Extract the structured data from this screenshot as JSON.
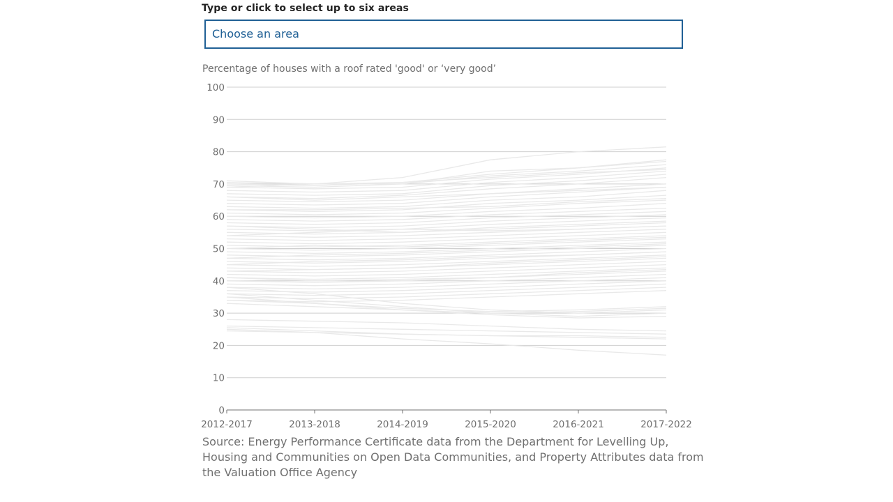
{
  "selector": {
    "label": "Type or click to select up to six areas",
    "placeholder": "Choose an area"
  },
  "chart_subtitle": "Percentage of houses with a roof rated 'good' or ‘very good’",
  "source": "Source: Energy Performance Certificate data from the Department for Levelling Up, Housing and Communities on Open Data Communities, and Property Attributes data from the Valuation Office Agency",
  "colors": {
    "line": "#e9e9e9",
    "grid": "#cfcfcf",
    "axis": "#707070",
    "accent": "#206095"
  },
  "chart_data": {
    "type": "line",
    "title": "Percentage of houses with a roof rated 'good' or ‘very good’",
    "xlabel": "",
    "ylabel": "",
    "categories": [
      "2012-2017",
      "2013-2018",
      "2014-2019",
      "2015-2020",
      "2016-2021",
      "2017-2022"
    ],
    "ylim": [
      0,
      100
    ],
    "yticks": [
      0,
      10,
      20,
      30,
      40,
      50,
      60,
      70,
      80,
      90,
      100
    ],
    "grid": true,
    "legend": "none",
    "series": [
      {
        "values": [
          71,
          70,
          72,
          77.5,
          80,
          81.5
        ]
      },
      {
        "values": [
          70.5,
          70,
          70,
          74,
          75,
          77.5
        ]
      },
      {
        "values": [
          70,
          69.5,
          70.5,
          73,
          75,
          77
        ]
      },
      {
        "values": [
          69.5,
          69,
          70,
          72.5,
          74,
          76
        ]
      },
      {
        "values": [
          69,
          68.5,
          69,
          71.5,
          73,
          75
        ]
      },
      {
        "values": [
          68,
          67.5,
          68,
          70.5,
          72,
          74
        ]
      },
      {
        "values": [
          67,
          66.5,
          67,
          69.5,
          71,
          73
        ]
      },
      {
        "values": [
          66,
          65.5,
          66.5,
          68.5,
          70,
          72
        ]
      },
      {
        "values": [
          65,
          64.5,
          65,
          67,
          68.5,
          70
        ]
      },
      {
        "values": [
          64,
          63.5,
          64,
          66,
          67.5,
          69
        ]
      },
      {
        "values": [
          63,
          62.5,
          63,
          65,
          66,
          68
        ]
      },
      {
        "values": [
          62,
          61.5,
          62,
          64,
          65,
          66.5
        ]
      },
      {
        "values": [
          61,
          60.5,
          61,
          62.5,
          64,
          65
        ]
      },
      {
        "values": [
          60,
          59.5,
          60,
          61.5,
          62.5,
          64
        ]
      },
      {
        "values": [
          59,
          58.5,
          59,
          60.5,
          61.5,
          62.5
        ]
      },
      {
        "values": [
          58,
          57.5,
          58,
          59.5,
          60.5,
          61.5
        ]
      },
      {
        "values": [
          57,
          56.5,
          57,
          58.5,
          59.5,
          60.5
        ]
      },
      {
        "values": [
          56,
          55.5,
          56,
          57.5,
          58.5,
          59.5
        ]
      },
      {
        "values": [
          55,
          54.5,
          55,
          56.5,
          57.5,
          58.5
        ]
      },
      {
        "values": [
          54,
          53.5,
          54,
          55,
          56,
          57
        ]
      },
      {
        "values": [
          53,
          52.5,
          53,
          54,
          55,
          56
        ]
      },
      {
        "values": [
          52,
          51.5,
          52,
          53,
          54,
          55
        ]
      },
      {
        "values": [
          51,
          50.5,
          51,
          52,
          53,
          54
        ]
      },
      {
        "values": [
          50,
          49.5,
          50,
          51,
          52,
          53
        ]
      },
      {
        "values": [
          49,
          48.5,
          49,
          50,
          51,
          52
        ]
      },
      {
        "values": [
          48,
          47.5,
          48,
          49,
          50,
          51
        ]
      },
      {
        "values": [
          47,
          46.5,
          47,
          48,
          49,
          50
        ]
      },
      {
        "values": [
          46,
          45.5,
          46,
          47,
          48,
          49
        ]
      },
      {
        "values": [
          45,
          44.5,
          45,
          46,
          47,
          48
        ]
      },
      {
        "values": [
          44,
          43.5,
          44,
          45,
          46,
          47
        ]
      },
      {
        "values": [
          43,
          42.5,
          43,
          44,
          45,
          46
        ]
      },
      {
        "values": [
          42,
          41.5,
          42,
          43,
          44,
          45
        ]
      },
      {
        "values": [
          41,
          40.5,
          41,
          42,
          43,
          44
        ]
      },
      {
        "values": [
          40,
          39.5,
          40,
          41,
          42,
          43
        ]
      },
      {
        "values": [
          39,
          38.5,
          39,
          40,
          41,
          42
        ]
      },
      {
        "values": [
          38,
          37.5,
          38,
          39,
          40,
          41
        ]
      },
      {
        "values": [
          37,
          36.5,
          37,
          38,
          39,
          40
        ]
      },
      {
        "values": [
          36,
          35.5,
          36,
          37,
          38,
          39
        ]
      },
      {
        "values": [
          35,
          34.5,
          35,
          36,
          37,
          38
        ]
      },
      {
        "values": [
          34,
          33.5,
          34,
          35,
          36,
          37
        ]
      },
      {
        "values": [
          38,
          36,
          33,
          31,
          30,
          31
        ]
      },
      {
        "values": [
          36,
          34,
          32,
          30,
          29,
          30
        ]
      },
      {
        "values": [
          35,
          33,
          31,
          29.5,
          28.5,
          29
        ]
      },
      {
        "values": [
          34,
          33,
          31.5,
          30.5,
          31,
          32
        ]
      },
      {
        "values": [
          33,
          32,
          31,
          30,
          30.5,
          31.5
        ]
      },
      {
        "values": [
          28,
          27.5,
          27,
          26,
          25,
          24.5
        ]
      },
      {
        "values": [
          26,
          25.5,
          25,
          24.5,
          24,
          23.5
        ]
      },
      {
        "values": [
          25.5,
          24.5,
          23.5,
          23,
          23,
          22.5
        ]
      },
      {
        "values": [
          25,
          24,
          22,
          20.5,
          18.5,
          17
        ]
      },
      {
        "values": [
          24.5,
          24,
          23.5,
          23,
          22.5,
          22
        ]
      },
      {
        "values": [
          66,
          65,
          66,
          67,
          68,
          69
        ]
      },
      {
        "values": [
          57,
          56,
          55,
          56,
          57,
          58
        ]
      },
      {
        "values": [
          50,
          51,
          50.5,
          51.5,
          52.5,
          53.5
        ]
      },
      {
        "values": [
          45,
          46,
          46.5,
          47.5,
          48,
          49
        ]
      },
      {
        "values": [
          41,
          40,
          40.5,
          41,
          42.5,
          43.5
        ]
      },
      {
        "values": [
          69,
          70,
          70.5,
          72,
          73.5,
          74.5
        ]
      },
      {
        "values": [
          62,
          62,
          62.5,
          63,
          64.5,
          65.5
        ]
      },
      {
        "values": [
          54,
          55,
          56,
          55.5,
          56,
          57
        ]
      },
      {
        "values": [
          47,
          48,
          48.5,
          49.5,
          50.5,
          51.5
        ]
      },
      {
        "values": [
          43,
          43.5,
          44,
          45.5,
          46.5,
          47.5
        ]
      }
    ]
  }
}
